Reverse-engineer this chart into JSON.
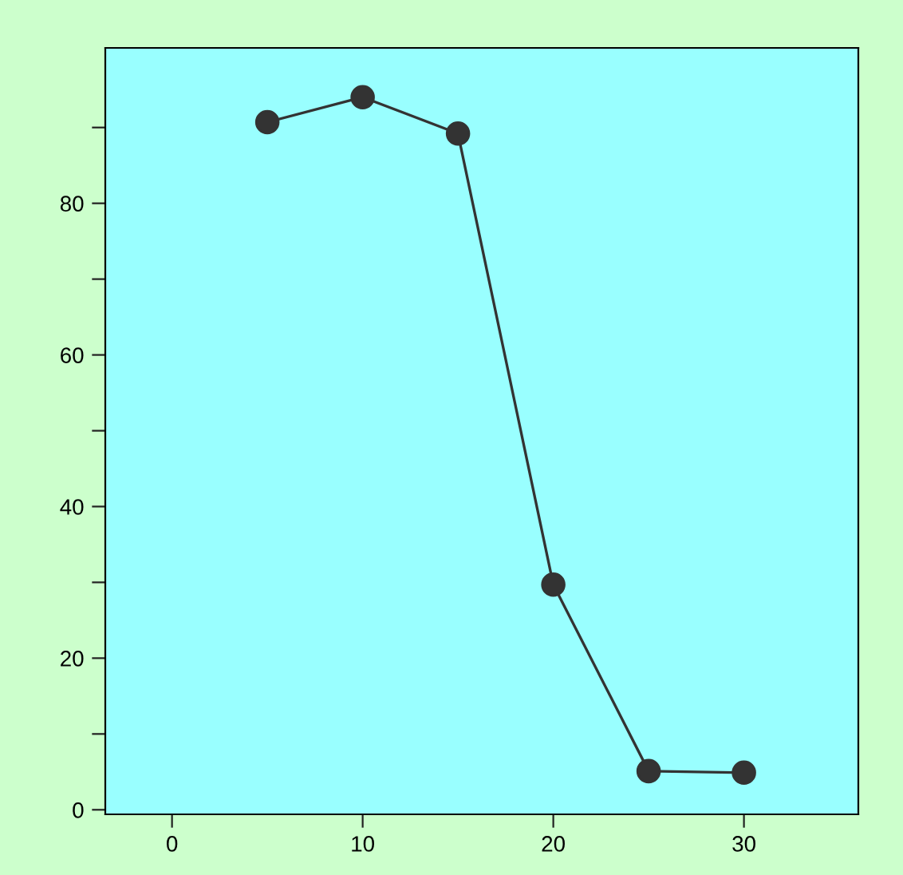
{
  "chart_data": {
    "type": "line",
    "x": [
      5,
      10,
      15,
      20,
      25,
      30
    ],
    "series": [
      {
        "color": "#333333",
        "values": [
          90.7,
          94,
          89.2,
          29.7,
          5.1,
          4.9
        ]
      }
    ],
    "xlim": [
      -3.5,
      36
    ],
    "ylim": [
      -0.6,
      100.5
    ],
    "xticks": [
      0,
      10,
      20,
      30
    ],
    "yticks": [
      0,
      {
        "value": 10,
        "label": null
      },
      20,
      {
        "value": 30,
        "label": null
      },
      40,
      {
        "value": 50,
        "label": null
      },
      60,
      {
        "value": 70,
        "label": null
      },
      80,
      {
        "value": 90,
        "label": null
      }
    ],
    "marker": "circle",
    "line_style": "solid",
    "grid": false,
    "legend": false
  }
}
